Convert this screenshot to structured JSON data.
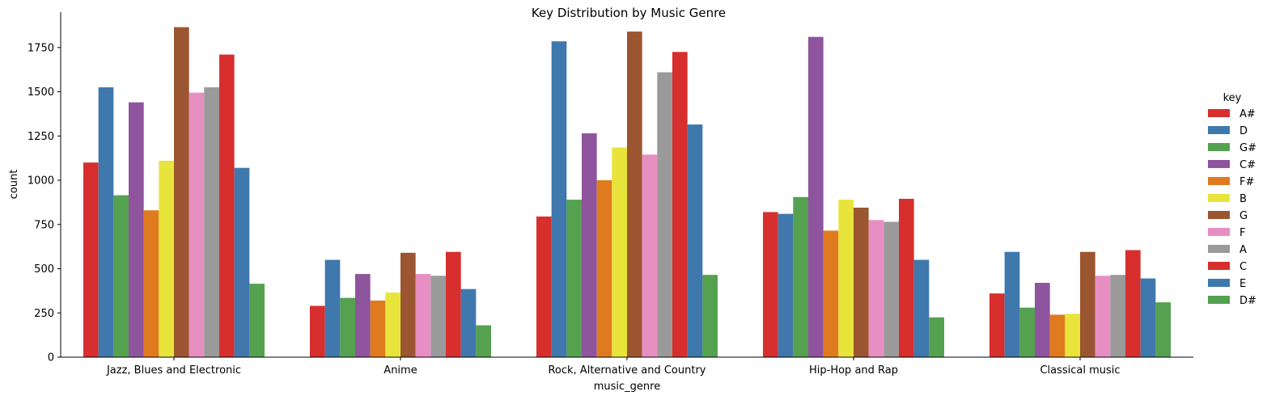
{
  "chart_data": {
    "type": "bar",
    "title": "Key Distribution by Music Genre",
    "xlabel": "music_genre",
    "ylabel": "count",
    "ylim": [
      0,
      1950
    ],
    "yticks": [
      0,
      250,
      500,
      750,
      1000,
      1250,
      1500,
      1750
    ],
    "grid": false,
    "legend_title": "key",
    "legend_position": "right",
    "categories": [
      "Jazz, Blues and Electronic",
      "Anime",
      "Rock, Alternative and Country",
      "Hip-Hop and Rap",
      "Classical music"
    ],
    "series": [
      {
        "name": "A#",
        "color": "#d62f2e",
        "values": [
          1100,
          290,
          795,
          820,
          360
        ]
      },
      {
        "name": "D",
        "color": "#3f78ad",
        "values": [
          1525,
          550,
          1785,
          810,
          595
        ]
      },
      {
        "name": "G#",
        "color": "#54a150",
        "values": [
          915,
          335,
          890,
          905,
          280
        ]
      },
      {
        "name": "C#",
        "color": "#8e549d",
        "values": [
          1440,
          470,
          1265,
          1810,
          420
        ]
      },
      {
        "name": "F#",
        "color": "#e07a1f",
        "values": [
          830,
          320,
          1000,
          715,
          240
        ]
      },
      {
        "name": "B",
        "color": "#e9e43b",
        "values": [
          1110,
          365,
          1185,
          890,
          245
        ]
      },
      {
        "name": "G",
        "color": "#9b5631",
        "values": [
          1865,
          590,
          1840,
          845,
          595
        ]
      },
      {
        "name": "F",
        "color": "#e78fc2",
        "values": [
          1495,
          470,
          1145,
          775,
          460
        ]
      },
      {
        "name": "A",
        "color": "#9a9a9a",
        "values": [
          1525,
          460,
          1610,
          765,
          465
        ]
      },
      {
        "name": "C",
        "color": "#d62f2e",
        "values": [
          1710,
          595,
          1725,
          895,
          605
        ]
      },
      {
        "name": "E",
        "color": "#3f78ad",
        "values": [
          1070,
          385,
          1315,
          550,
          445
        ]
      },
      {
        "name": "D#",
        "color": "#54a150",
        "values": [
          415,
          180,
          465,
          225,
          310
        ]
      }
    ]
  }
}
